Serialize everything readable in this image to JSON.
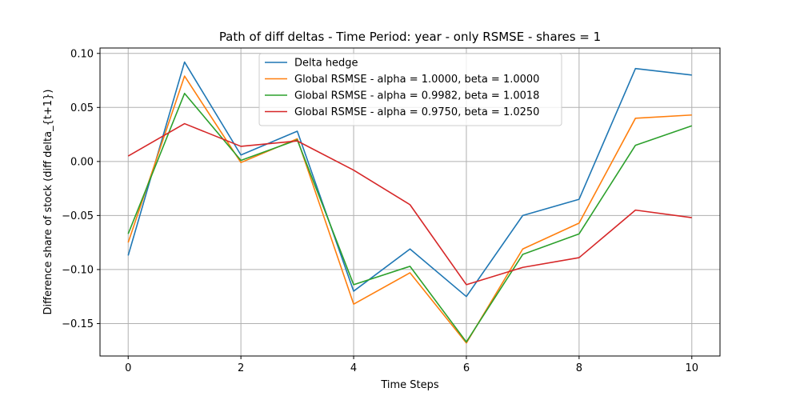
{
  "chart_data": {
    "type": "line",
    "title": "Path of diff deltas - Time Period: year - only RSMSE - shares = 1",
    "xlabel": "Time Steps",
    "ylabel": "Difference share of stock (diff delta_{t+1})",
    "xlim": [
      -0.5,
      10.5
    ],
    "ylim": [
      -0.18,
      0.105
    ],
    "x_ticks": [
      0,
      2,
      4,
      6,
      8,
      10
    ],
    "y_ticks": [
      -0.15,
      -0.1,
      -0.05,
      0.0,
      0.05,
      0.1
    ],
    "x_tick_labels": [
      "0",
      "2",
      "4",
      "6",
      "8",
      "10"
    ],
    "y_tick_labels": [
      "−0.15",
      "−0.10",
      "−0.05",
      "0.00",
      "0.05",
      "0.10"
    ],
    "grid": true,
    "legend_position": "top-center",
    "x": [
      0,
      1,
      2,
      3,
      4,
      5,
      6,
      7,
      8,
      9,
      10
    ],
    "series": [
      {
        "name": "Delta hedge",
        "color": "#1f77b4",
        "values": [
          -0.087,
          0.092,
          0.006,
          0.028,
          -0.12,
          -0.081,
          -0.125,
          -0.05,
          -0.035,
          0.086,
          0.08
        ]
      },
      {
        "name": "Global RSMSE - alpha = 1.0000, beta = 1.0000",
        "color": "#ff7f0e",
        "values": [
          -0.075,
          0.079,
          -0.001,
          0.021,
          -0.132,
          -0.103,
          -0.168,
          -0.081,
          -0.057,
          0.04,
          0.043
        ]
      },
      {
        "name": "Global RSMSE - alpha = 0.9982, beta = 1.0018",
        "color": "#2ca02c",
        "values": [
          -0.067,
          0.063,
          0.001,
          0.02,
          -0.114,
          -0.097,
          -0.167,
          -0.086,
          -0.067,
          0.015,
          0.033
        ]
      },
      {
        "name": "Global RSMSE - alpha = 0.9750, beta = 1.0250",
        "color": "#d62728",
        "values": [
          0.005,
          0.035,
          0.014,
          0.019,
          -0.008,
          -0.04,
          -0.114,
          -0.098,
          -0.089,
          -0.045,
          -0.052
        ]
      }
    ]
  }
}
